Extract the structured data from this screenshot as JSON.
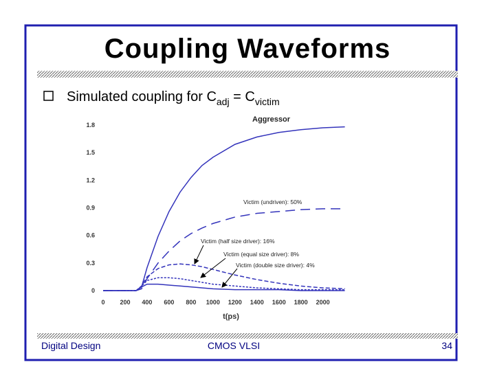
{
  "slide": {
    "title": "Coupling Waveforms",
    "bullet": {
      "text1": "Simulated coupling for C",
      "sub1": "adj",
      "text2": " = C",
      "sub2": "victim"
    },
    "footer": {
      "left": "Digital Design",
      "center": "CMOS VLSI",
      "right": "34"
    }
  },
  "chart_data": {
    "type": "line",
    "x_label": "t(ps)",
    "x": [
      0,
      100,
      200,
      300,
      350,
      400,
      500,
      600,
      700,
      800,
      900,
      1000,
      1200,
      1400,
      1600,
      1800,
      2000,
      2200
    ],
    "xlim": [
      0,
      2240
    ],
    "xticks": [
      0,
      200,
      400,
      600,
      800,
      1000,
      1200,
      1400,
      1600,
      1800,
      2000
    ],
    "ylim": [
      0,
      1.8
    ],
    "yticks": [
      0,
      0.3,
      0.6,
      0.9,
      1.2,
      1.5,
      1.8
    ],
    "series": [
      {
        "name": "Aggressor",
        "color": "#3333bb",
        "dash": "none",
        "values": [
          0,
          0,
          0,
          0,
          0.04,
          0.25,
          0.59,
          0.86,
          1.07,
          1.23,
          1.36,
          1.45,
          1.59,
          1.67,
          1.72,
          1.75,
          1.77,
          1.78
        ]
      },
      {
        "name": "Victim (undriven): 50%",
        "color": "#3333bb",
        "dash": "14 8",
        "values": [
          0,
          0,
          0,
          0,
          0.02,
          0.13,
          0.3,
          0.43,
          0.54,
          0.62,
          0.68,
          0.73,
          0.8,
          0.84,
          0.86,
          0.88,
          0.89,
          0.89
        ]
      },
      {
        "name": "Victim (half size driver): 16%",
        "color": "#3333bb",
        "dash": "6 3",
        "values": [
          0,
          0,
          0,
          0,
          0.05,
          0.15,
          0.24,
          0.28,
          0.29,
          0.28,
          0.26,
          0.23,
          0.17,
          0.12,
          0.08,
          0.05,
          0.03,
          0.02
        ]
      },
      {
        "name": "Victim (equal size driver): 8%",
        "color": "#3333bb",
        "dash": "3 2",
        "values": [
          0,
          0,
          0,
          0,
          0.05,
          0.11,
          0.14,
          0.14,
          0.13,
          0.11,
          0.09,
          0.07,
          0.05,
          0.03,
          0.02,
          0.01,
          0.01,
          0.01
        ]
      },
      {
        "name": "Victim (double size driver): 4%",
        "color": "#3333bb",
        "dash": "none",
        "values": [
          0,
          0,
          0,
          0,
          0.04,
          0.07,
          0.07,
          0.06,
          0.05,
          0.04,
          0.03,
          0.02,
          0.01,
          0.01,
          0.01,
          0,
          0,
          0
        ]
      }
    ]
  }
}
